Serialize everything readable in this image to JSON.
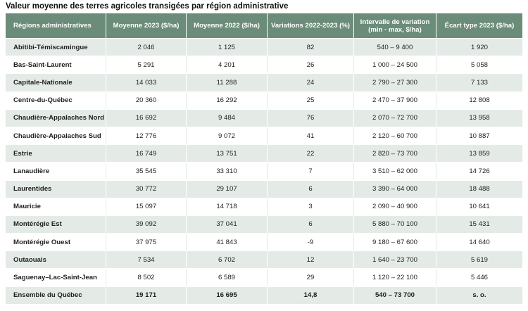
{
  "title": "Valeur moyenne des terres agricoles transigées par région administrative",
  "headers": [
    "Régions administratives",
    "Moyenne  2023 ($/ha)",
    "Moyenne 2022 ($/ha)",
    "Variations 2022-2023 (%)",
    "Intervalle de variation (min - max, $/ha)",
    "Écart type 2023 ($/ha)"
  ],
  "rows": [
    [
      "Abitibi-Témiscamingue",
      "2 046",
      "1 125",
      "82",
      "540 – 9 400",
      "1 920"
    ],
    [
      "Bas-Saint-Laurent",
      "5 291",
      "4 201",
      "26",
      "1 000 – 24 500",
      "5 058"
    ],
    [
      "Capitale-Nationale",
      "14 033",
      "11 288",
      "24",
      "2 790 – 27 300",
      "7 133"
    ],
    [
      "Centre-du-Québec",
      "20 360",
      "16 292",
      "25",
      "2 470 – 37 900",
      "12 808"
    ],
    [
      "Chaudière-Appalaches Nord",
      "16 692",
      "9 484",
      "76",
      "2 070 – 72 700",
      "13 958"
    ],
    [
      "Chaudière-Appalaches Sud",
      "12 776",
      "9 072",
      "41",
      "2 120 – 60 700",
      "10 887"
    ],
    [
      "Estrie",
      "16 749",
      "13 751",
      "22",
      "2 820 – 73 700",
      "13 859"
    ],
    [
      "Lanaudière",
      "35 545",
      "33 310",
      "7",
      "3 510 – 62 000",
      "14 726"
    ],
    [
      "Laurentides",
      "30 772",
      "29 107",
      "6",
      "3 390 – 64 000",
      "18 488"
    ],
    [
      "Mauricie",
      "15 097",
      "14 718",
      "3",
      "2 090 – 40 900",
      "10 641"
    ],
    [
      "Montérégie Est",
      "39 092",
      "37 041",
      "6",
      "5 880 – 70 100",
      "15 431"
    ],
    [
      "Montérégie Ouest",
      "37 975",
      "41 843",
      "-9",
      "9 180 – 67 600",
      "14 640"
    ],
    [
      "Outaouais",
      "7 534",
      "6 702",
      "12",
      "1 640 – 23 700",
      "5 619"
    ],
    [
      "Saguenay–Lac-Saint-Jean",
      "8 502",
      "6 589",
      "29",
      "1 120 – 22 100",
      "5 446"
    ]
  ],
  "total": [
    "Ensemble du Québec",
    "19 171",
    "16 695",
    "14,8",
    "540 – 73 700",
    "s. o."
  ],
  "colors": {
    "header_bg": "#6b8c79",
    "row_alt_bg": "#e4ebe6"
  }
}
